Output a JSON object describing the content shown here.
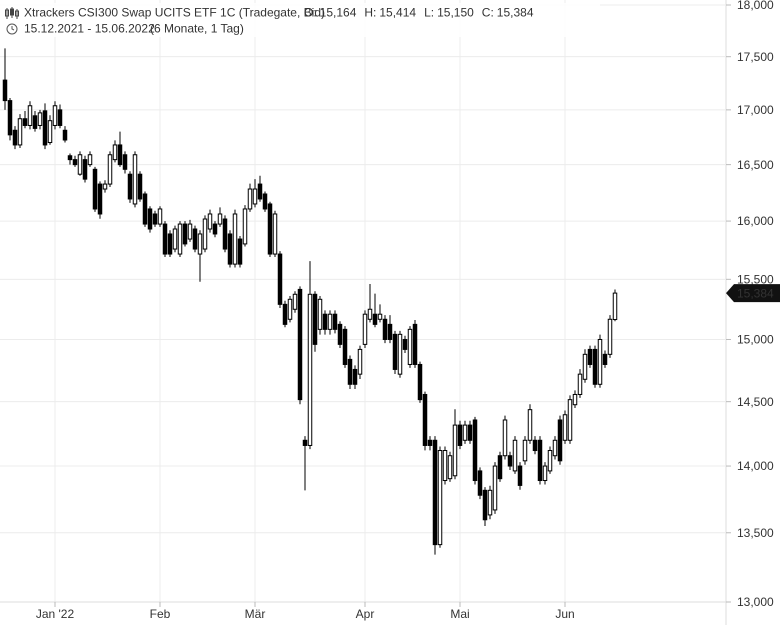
{
  "header": {
    "title": "Xtrackers CSI300 Swap UCITS ETF 1C (Tradegate, Bid)",
    "quote": [
      {
        "key": "O:",
        "value": "15,164"
      },
      {
        "key": "H:",
        "value": "15,414"
      },
      {
        "key": "L:",
        "value": "15,150"
      },
      {
        "key": "C:",
        "value": "15,384"
      }
    ],
    "range": "15.12.2021 - 15.06.2022",
    "period": "(6 Monate, 1 Tag)"
  },
  "chart_data": {
    "type": "candlestick",
    "log_scale": true,
    "grid": true,
    "up_color": "#ffffff",
    "down_color": "#000000",
    "ylim": [
      13000,
      18000
    ],
    "yticks": [
      {
        "value": 13000,
        "label": "13,000"
      },
      {
        "value": 13500,
        "label": "13,500"
      },
      {
        "value": 14000,
        "label": "14,000"
      },
      {
        "value": 14500,
        "label": "14,500"
      },
      {
        "value": 15000,
        "label": "15,000"
      },
      {
        "value": 15500,
        "label": "15,500"
      },
      {
        "value": 16000,
        "label": "16,000"
      },
      {
        "value": 16500,
        "label": "16,500"
      },
      {
        "value": 17000,
        "label": "17,000"
      },
      {
        "value": 17500,
        "label": "17,500"
      },
      {
        "value": 18000,
        "label": "18,000"
      }
    ],
    "xlim": [
      -1,
      144
    ],
    "xticks": [
      {
        "value": 10,
        "label": "Jan '22"
      },
      {
        "value": 31,
        "label": "Feb"
      },
      {
        "value": 50,
        "label": "Mär"
      },
      {
        "value": 72,
        "label": "Apr"
      },
      {
        "value": 91,
        "label": "Mai"
      },
      {
        "value": 112,
        "label": "Jun"
      }
    ],
    "last_label": {
      "value": 15384,
      "label": "15,384"
    },
    "ohlc": [
      [
        17278,
        17580,
        17000,
        17086
      ],
      [
        17086,
        17110,
        16720,
        16770
      ],
      [
        16812,
        16850,
        16640,
        16678
      ],
      [
        16678,
        16960,
        16650,
        16918
      ],
      [
        16918,
        16990,
        16830,
        16856
      ],
      [
        16856,
        17080,
        16820,
        17038
      ],
      [
        16945,
        16990,
        16800,
        16829
      ],
      [
        16856,
        17000,
        16820,
        16972
      ],
      [
        16991,
        17060,
        16640,
        16678
      ],
      [
        16700,
        16950,
        16680,
        16900
      ],
      [
        16856,
        17080,
        16820,
        17038
      ],
      [
        17000,
        17050,
        16830,
        16856
      ],
      [
        16812,
        16850,
        16700,
        16723
      ],
      [
        16580,
        16600,
        16500,
        16545
      ],
      [
        16545,
        16580,
        16480,
        16500
      ],
      [
        16414,
        16620,
        16400,
        16589
      ],
      [
        16545,
        16580,
        16340,
        16370
      ],
      [
        16500,
        16620,
        16480,
        16589
      ],
      [
        16458,
        16480,
        16080,
        16106
      ],
      [
        16326,
        16350,
        16020,
        16062
      ],
      [
        16282,
        16360,
        16250,
        16326
      ],
      [
        16326,
        16620,
        16300,
        16589
      ],
      [
        16545,
        16720,
        16520,
        16678
      ],
      [
        16678,
        16800,
        16480,
        16500
      ],
      [
        16589,
        16620,
        16420,
        16458
      ],
      [
        16414,
        16440,
        16160,
        16194
      ],
      [
        16150,
        16620,
        16120,
        16589
      ],
      [
        16414,
        16440,
        16170,
        16194
      ],
      [
        16238,
        16260,
        15950,
        15974
      ],
      [
        16106,
        16130,
        15900,
        15931
      ],
      [
        16062,
        16090,
        15950,
        15974
      ],
      [
        15974,
        16130,
        15950,
        16106
      ],
      [
        15974,
        16000,
        15690,
        15715
      ],
      [
        15888,
        15920,
        15690,
        15715
      ],
      [
        15758,
        15960,
        15730,
        15931
      ],
      [
        15715,
        16000,
        15690,
        15974
      ],
      [
        15974,
        16000,
        15780,
        15802
      ],
      [
        15844,
        16010,
        15820,
        15974
      ],
      [
        15931,
        15960,
        15730,
        15758
      ],
      [
        15715,
        15920,
        15480,
        15888
      ],
      [
        15758,
        16050,
        15730,
        16018
      ],
      [
        15931,
        16100,
        15900,
        16062
      ],
      [
        15974,
        16000,
        15860,
        15888
      ],
      [
        15974,
        16120,
        15950,
        16062
      ],
      [
        16018,
        16050,
        15730,
        15758
      ],
      [
        15888,
        15920,
        15600,
        15629
      ],
      [
        15629,
        16100,
        15600,
        16062
      ],
      [
        15844,
        15870,
        15600,
        15629
      ],
      [
        15802,
        16140,
        15780,
        16106
      ],
      [
        16106,
        16330,
        16080,
        16282
      ],
      [
        16150,
        16370,
        16120,
        16282
      ],
      [
        16326,
        16400,
        16170,
        16194
      ],
      [
        16238,
        16260,
        16080,
        16106
      ],
      [
        16150,
        16170,
        15690,
        15715
      ],
      [
        15715,
        16090,
        15690,
        16062
      ],
      [
        15715,
        15740,
        15260,
        15290
      ],
      [
        15290,
        15320,
        15100,
        15124
      ],
      [
        15166,
        15360,
        15140,
        15332
      ],
      [
        15249,
        15400,
        15220,
        15374
      ],
      [
        15415,
        15440,
        14480,
        14516
      ],
      [
        14198,
        14230,
        13816,
        14158
      ],
      [
        14158,
        15655,
        14130,
        15374
      ],
      [
        15374,
        15400,
        14900,
        14960
      ],
      [
        15083,
        15360,
        15040,
        15332
      ],
      [
        15208,
        15240,
        15040,
        15083
      ],
      [
        15083,
        15240,
        15040,
        15208
      ],
      [
        15208,
        15240,
        15050,
        15083
      ],
      [
        15124,
        15150,
        14930,
        14960
      ],
      [
        15083,
        15110,
        14770,
        14797
      ],
      [
        14838,
        14870,
        14600,
        14638
      ],
      [
        14757,
        14790,
        14600,
        14638
      ],
      [
        14719,
        14950,
        14680,
        14919
      ],
      [
        14960,
        15240,
        14930,
        15208
      ],
      [
        15166,
        15460,
        15140,
        15249
      ],
      [
        15208,
        15380,
        15100,
        15124
      ],
      [
        15166,
        15290,
        15140,
        15208
      ],
      [
        15166,
        15200,
        14970,
        15000
      ],
      [
        15124,
        15200,
        14970,
        15000
      ],
      [
        15042,
        15070,
        14720,
        14757
      ],
      [
        14719,
        15070,
        14690,
        15042
      ],
      [
        15000,
        15030,
        14890,
        14919
      ],
      [
        14797,
        15110,
        14770,
        15083
      ],
      [
        15124,
        15160,
        14770,
        14797
      ],
      [
        14797,
        14820,
        14490,
        14516
      ],
      [
        14557,
        14580,
        14120,
        14158
      ],
      [
        14198,
        14230,
        14120,
        14158
      ],
      [
        14198,
        14230,
        13340,
        13413
      ],
      [
        13413,
        14150,
        13390,
        14119
      ],
      [
        13890,
        14150,
        13860,
        14119
      ],
      [
        13904,
        14110,
        13880,
        14079
      ],
      [
        13926,
        14440,
        13900,
        14316
      ],
      [
        14316,
        14350,
        14130,
        14158
      ],
      [
        14198,
        14350,
        14170,
        14316
      ],
      [
        14316,
        14350,
        14170,
        14198
      ],
      [
        14356,
        14380,
        13860,
        13890
      ],
      [
        13963,
        13990,
        13750,
        13779
      ],
      [
        13816,
        13840,
        13550,
        13596
      ],
      [
        13632,
        13850,
        13600,
        13816
      ],
      [
        13669,
        14030,
        13640,
        14000
      ],
      [
        14079,
        14110,
        13880,
        13904
      ],
      [
        14079,
        14390,
        14050,
        14356
      ],
      [
        14079,
        14110,
        13970,
        14000
      ],
      [
        13963,
        14230,
        13940,
        14198
      ],
      [
        14000,
        14030,
        13820,
        13853
      ],
      [
        14040,
        14230,
        14010,
        14198
      ],
      [
        14198,
        14480,
        14170,
        14437
      ],
      [
        14198,
        14230,
        14090,
        14119
      ],
      [
        14198,
        14230,
        13860,
        13890
      ],
      [
        13890,
        14030,
        13860,
        14000
      ],
      [
        13963,
        14150,
        13940,
        14119
      ],
      [
        14079,
        14230,
        14050,
        14198
      ],
      [
        14356,
        14390,
        14010,
        14040
      ],
      [
        14198,
        14430,
        14170,
        14397
      ],
      [
        14198,
        14550,
        14170,
        14516
      ],
      [
        14476,
        14590,
        14450,
        14557
      ],
      [
        14557,
        14760,
        14530,
        14719
      ],
      [
        14678,
        14920,
        14650,
        14879
      ],
      [
        14919,
        14950,
        14770,
        14797
      ],
      [
        14919,
        14950,
        14610,
        14638
      ],
      [
        14638,
        15040,
        14610,
        15000
      ],
      [
        14879,
        14910,
        14770,
        14797
      ],
      [
        14879,
        15200,
        14850,
        15166
      ],
      [
        15164,
        15414,
        15150,
        15384
      ]
    ]
  }
}
